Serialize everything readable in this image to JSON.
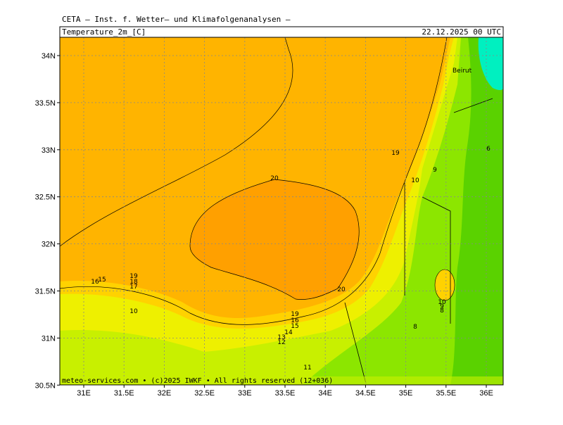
{
  "header": {
    "title": "CETA — Inst. f. Wetter— und Klimafolgenanalysen —",
    "variable": "Temperature_2m_[C]",
    "valid_time": "22.12.2025 00 UTC"
  },
  "axes": {
    "latitude_labels": [
      "34N",
      "33.5N",
      "33N",
      "32.5N",
      "32N",
      "31.5N",
      "31N",
      "30.5N"
    ],
    "longitude_labels": [
      "31E",
      "31.5E",
      "32E",
      "32.5E",
      "33E",
      "33.5E",
      "34E",
      "34.5E",
      "35E",
      "35.5E",
      "36E"
    ]
  },
  "map": {
    "city_label": "Beirut",
    "contour_labels": [
      "20",
      "20",
      "19",
      "10",
      "9",
      "6",
      "19",
      "18",
      "17",
      "16",
      "15",
      "10",
      "19",
      "16",
      "15",
      "14",
      "13",
      "12",
      "11",
      "8",
      "10",
      "9",
      "8"
    ]
  },
  "footer": "meteo-services.com • (c)2025 IWKF • All rights reserved (12+036)"
}
